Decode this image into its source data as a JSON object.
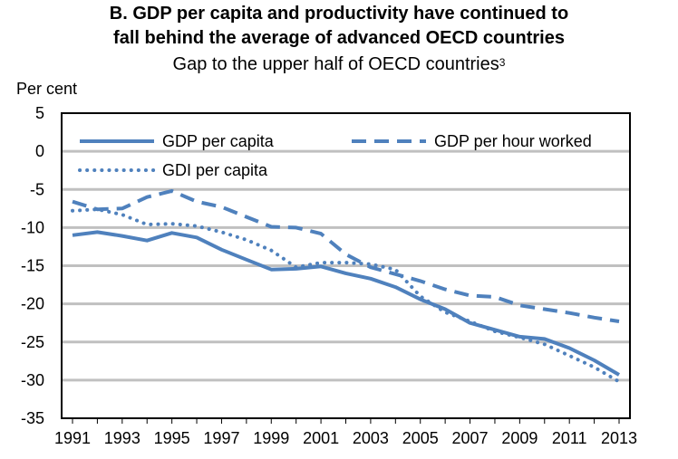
{
  "chart_data": {
    "type": "line",
    "title_line1": "B. GDP per capita and productivity have continued to",
    "title_line2": "fall behind the average of advanced OECD countries",
    "subtitle": "Gap to the upper half of OECD countries",
    "subtitle_note": "3",
    "ylabel": "Per cent",
    "ylim": [
      -35,
      5
    ],
    "yticks": [
      "5",
      "0",
      "-5",
      "-10",
      "-15",
      "-20",
      "-25",
      "-30",
      "-35"
    ],
    "xlim": [
      1991,
      2013
    ],
    "xticks": [
      "1991",
      "1993",
      "1995",
      "1997",
      "1999",
      "2001",
      "2003",
      "2005",
      "2007",
      "2009",
      "2011",
      "2013"
    ],
    "grid": true,
    "legend_placement": "top",
    "x": [
      1991,
      1992,
      1993,
      1994,
      1995,
      1996,
      1997,
      1998,
      1999,
      2000,
      2001,
      2002,
      2003,
      2004,
      2005,
      2006,
      2007,
      2008,
      2009,
      2010,
      2011,
      2012,
      2013
    ],
    "series": [
      {
        "name": "GDP per capita",
        "style": "solid",
        "color": "#4f81bd",
        "values": [
          -11.0,
          -10.6,
          -11.1,
          -11.7,
          -10.7,
          -11.3,
          -12.9,
          -14.2,
          -15.5,
          -15.4,
          -15.1,
          -16.0,
          -16.7,
          -17.8,
          -19.4,
          -20.7,
          -22.5,
          -23.4,
          -24.3,
          -24.6,
          -25.8,
          -27.4,
          -29.3
        ]
      },
      {
        "name": "GDP per hour worked",
        "style": "dashed",
        "color": "#4f81bd",
        "values": [
          -6.6,
          -7.6,
          -7.5,
          -6.0,
          -5.2,
          -6.6,
          -7.3,
          -8.6,
          -9.9,
          -10.0,
          -10.8,
          -13.5,
          -15.2,
          -16.1,
          -17.0,
          -18.1,
          -18.9,
          -19.1,
          -20.2,
          -20.7,
          -21.2,
          -21.8,
          -22.3
        ]
      },
      {
        "name": "GDI per capita",
        "style": "dotted",
        "color": "#4f81bd",
        "values": [
          -7.8,
          -7.6,
          -8.3,
          -9.6,
          -9.5,
          -9.8,
          -10.6,
          -11.6,
          -13.0,
          -15.2,
          -14.6,
          -14.6,
          -14.8,
          -15.5,
          -19.0,
          -21.1,
          -22.3,
          -23.6,
          -24.4,
          -25.3,
          -26.8,
          -28.3,
          -30.2
        ]
      }
    ]
  }
}
